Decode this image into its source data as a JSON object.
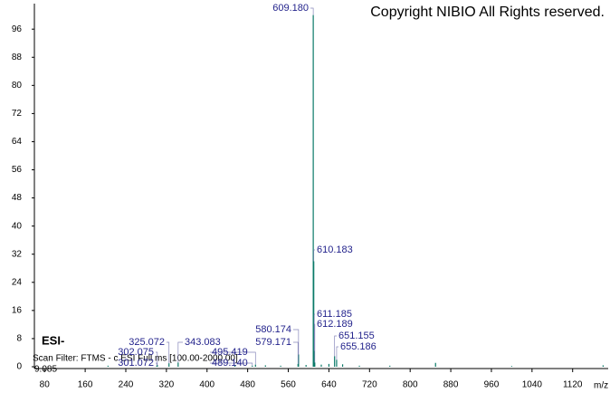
{
  "chart_data": {
    "type": "stem",
    "copyright": "Copyright NIBIO All Rights reserved.",
    "ionization": "ESI-",
    "scan_filter": "Scan Filter: FTMS - c ESI Full ms [100.00-2000.00]",
    "retention": "9.085",
    "x_label": "m/z",
    "color": "#0b7a68",
    "label_color": "#23238c",
    "xlim": [
      60,
      1190
    ],
    "ylim": [
      0,
      103
    ],
    "xticks": [
      80,
      160,
      240,
      320,
      400,
      480,
      560,
      640,
      720,
      800,
      880,
      960,
      1040,
      1120
    ],
    "yticks": [
      0,
      8,
      16,
      24,
      32,
      40,
      48,
      56,
      64,
      72,
      80,
      88,
      96
    ],
    "series": [
      {
        "x": [
          609.18,
          610.183,
          611.185,
          612.189,
          651.155,
          655.186,
          580.174,
          579.171,
          325.072,
          343.083,
          302.075,
          301.072,
          495.419,
          489.14
        ],
        "values": [
          100,
          30,
          4.5,
          1.2,
          3,
          2,
          3.5,
          0.8,
          1,
          1.2,
          0.5,
          0.3,
          0.6,
          0.3
        ],
        "labels": [
          "609.180",
          "610.183",
          "611.185",
          "612.189",
          "651.155",
          "655.186",
          "580.174",
          "579.171",
          "325.072",
          "343.083",
          "302.075",
          "301.072",
          "495.419",
          "489.140"
        ]
      },
      {
        "x": [
          205,
          455,
          515,
          545,
          595,
          625,
          640,
          667,
          700,
          760,
          850,
          1000,
          1180
        ],
        "values": [
          0.3,
          0.3,
          0.4,
          0.3,
          0.5,
          0.6,
          0.8,
          0.7,
          0.3,
          0.3,
          1.1,
          0.2,
          0.4
        ]
      }
    ]
  }
}
